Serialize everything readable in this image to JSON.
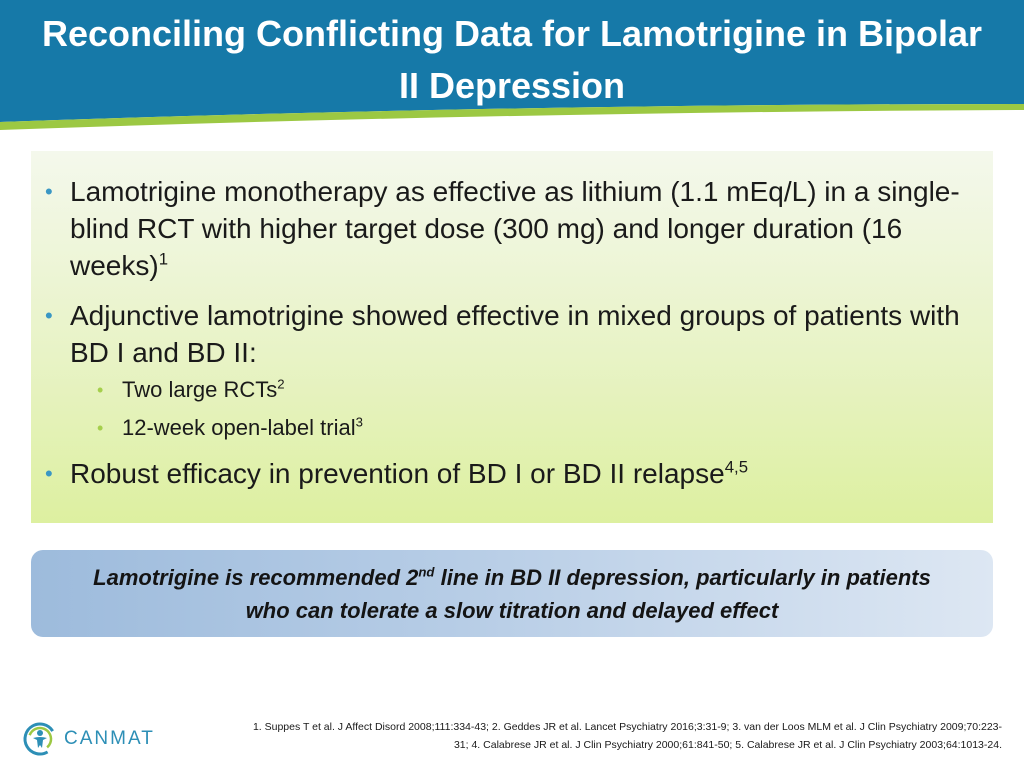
{
  "slide": {
    "title": "Reconciling Conflicting Data for Lamotrigine in Bipolar II Depression",
    "colors": {
      "header_blue": "#1679a8",
      "accent_green": "#9cc843",
      "bullet_blue": "#3a97c4",
      "subbullet_green": "#a5cf4c"
    }
  },
  "content": {
    "bullets": [
      {
        "text": "Lamotrigine monotherapy as effective as lithium (1.1 mEq/L) in a single-blind RCT with higher target dose (300 mg) and longer duration (16 weeks)",
        "sup": "1"
      },
      {
        "text": "Adjunctive lamotrigine showed effective in mixed groups of patients with BD I and BD II:",
        "sup": "",
        "subitems": [
          {
            "text": "Two large RCTs",
            "sup": "2"
          },
          {
            "text": "12-week open-label trial",
            "sup": "3"
          }
        ]
      },
      {
        "text": "Robust efficacy in prevention of BD I or BD II relapse",
        "sup": "4,5"
      }
    ]
  },
  "recommendation": {
    "text_before": "Lamotrigine is recommended 2",
    "sup": "nd",
    "text_after": " line in BD II depression, particularly in patients who can tolerate a slow titration and delayed effect"
  },
  "footer": {
    "logo_text": "CANMAT",
    "logo_icon": "canmat-logo-icon",
    "references": "1. Suppes T et al. J Affect Disord 2008;111:334-43; 2. Geddes JR et al. Lancet Psychiatry 2016;3:31-9; 3. van der Loos MLM et al. J Clin Psychiatry 2009;70:223-31; 4. Calabrese JR et al. J Clin Psychiatry 2000;61:841-50; 5. Calabrese JR et al. J Clin Psychiatry 2003;64:1013-24."
  }
}
